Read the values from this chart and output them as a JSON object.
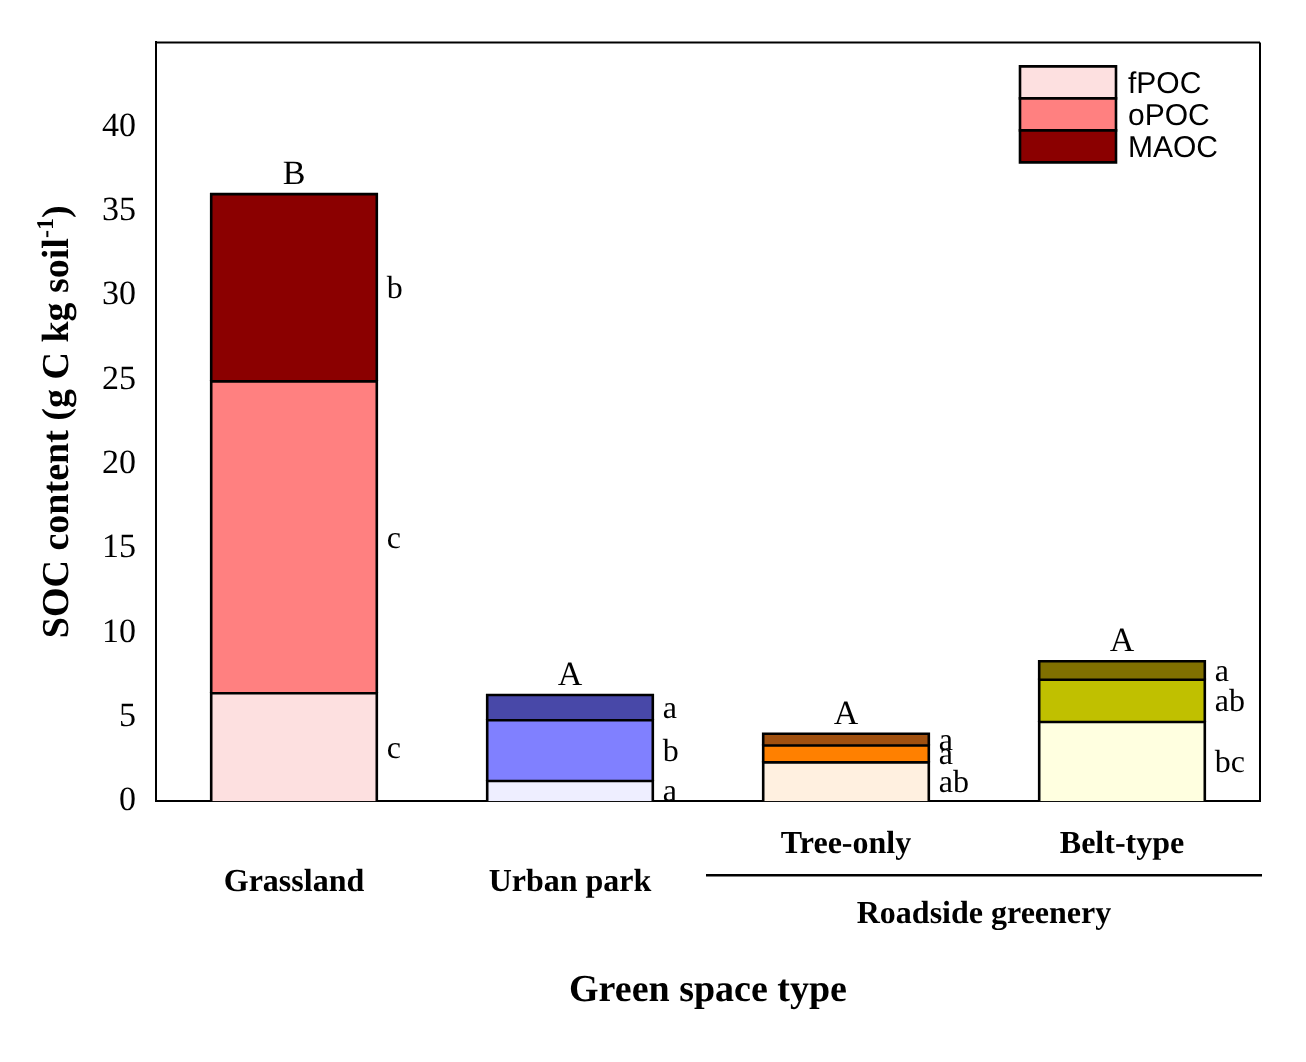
{
  "chart_data": {
    "type": "bar",
    "stacked": true,
    "xlabel": "Green space type",
    "ylabel": "SOC content (g C kg soil$^{-1}$)",
    "categories": [
      "Grassland",
      "Urban park",
      "Tree-only",
      "Belt-type"
    ],
    "series": [
      {
        "name": "fPOC",
        "color": "#fde0e0",
        "colors": [
          "#fde0e0",
          "#eeeeff",
          "#fff0e0",
          "#ffffe0"
        ],
        "values": [
          6.4,
          1.2,
          2.3,
          4.7
        ],
        "value_labels": [
          "c",
          "a",
          "ab",
          "bc"
        ]
      },
      {
        "name": "oPOC",
        "color": "#ff8080",
        "colors": [
          "#ff8080",
          "#8080ff",
          "#ff8000",
          "#c0c000"
        ],
        "values": [
          18.5,
          3.6,
          1.0,
          2.5
        ],
        "value_labels": [
          "c",
          "b",
          "a",
          "ab"
        ]
      },
      {
        "name": "MAOC",
        "color": "#8b0000",
        "colors": [
          "#8b0000",
          "#4848a8",
          "#a05010",
          "#807000"
        ],
        "values": [
          11.1,
          1.5,
          0.7,
          1.1
        ],
        "value_labels": [
          "b",
          "a",
          "a",
          "a"
        ]
      }
    ],
    "ylim": [
      0,
      45
    ],
    "yticks": [
      0,
      5,
      10,
      15,
      20,
      25,
      30,
      35,
      40
    ],
    "grid": false,
    "legend": "top right",
    "annotations": [
      {
        "text": "B",
        "x": "Grassland",
        "y": 36.0
      },
      {
        "text": "A",
        "x": "Urban park",
        "y": 6.3
      },
      {
        "text": "A",
        "x": "Tree-only",
        "y": 4.0
      },
      {
        "text": "A",
        "x": "Belt-type",
        "y": 8.3
      },
      "Roadside greenery"
    ]
  }
}
